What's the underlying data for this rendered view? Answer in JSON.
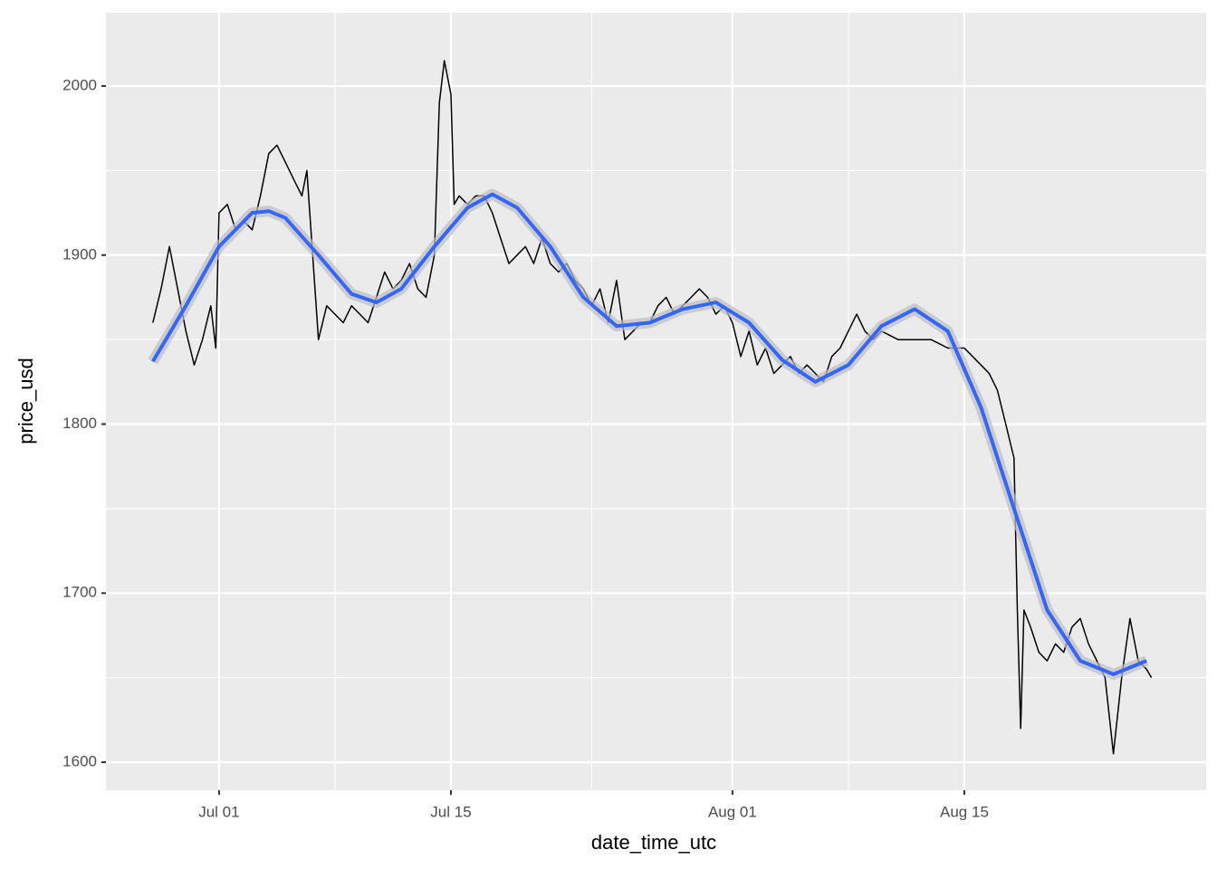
{
  "chart_data": {
    "type": "line",
    "x_label": "date_time_utc",
    "y_label": "price_usd",
    "xlim": [
      -6.83,
      59.6
    ],
    "ylim": [
      1583.4,
      2043.4
    ],
    "xticks": [
      {
        "value": 0,
        "label": "Jul 01"
      },
      {
        "value": 14,
        "label": "Jul 15"
      },
      {
        "value": 31,
        "label": "Aug 01"
      },
      {
        "value": 45,
        "label": "Aug 15"
      }
    ],
    "xminor": [
      7,
      22.5,
      38
    ],
    "yticks": [
      1600,
      1700,
      1800,
      1900,
      2000
    ],
    "yminor": [
      1650,
      1750,
      1850,
      1950
    ],
    "grid": true,
    "series": [
      {
        "color": "#000000",
        "x": [
          -4,
          -3.5,
          -3,
          -2.5,
          -2,
          -1.5,
          -1,
          -0.5,
          -0.2,
          0,
          0.5,
          1,
          1.5,
          2,
          2.5,
          3,
          3.5,
          4,
          4.5,
          5,
          5.3,
          6,
          6.5,
          7,
          7.5,
          8,
          8.5,
          9,
          9.5,
          10,
          10.5,
          11,
          11.5,
          12,
          12.5,
          13,
          13.3,
          13.6,
          14,
          14.2,
          14.5,
          15,
          15.5,
          16,
          16.5,
          17,
          17.5,
          18,
          18.5,
          19,
          19.5,
          20,
          20.5,
          21,
          21.5,
          22,
          22.5,
          23,
          23.5,
          24,
          24.5,
          25,
          25.5,
          26,
          26.5,
          27,
          27.5,
          28,
          28.5,
          29,
          29.5,
          30,
          30.5,
          31,
          31.5,
          32,
          32.5,
          33,
          33.5,
          34,
          34.5,
          35,
          35.5,
          36,
          36.5,
          37,
          37.5,
          38,
          38.5,
          39,
          39.5,
          40,
          41,
          42,
          43,
          44,
          45,
          45.5,
          46,
          46.5,
          47,
          47.5,
          48,
          48.2,
          48.4,
          48.6,
          49,
          49.5,
          50,
          50.5,
          51,
          51.5,
          52,
          52.5,
          53,
          53.5,
          54,
          54.5,
          55,
          55.5,
          56,
          56.3
        ],
        "values": [
          1860,
          1880,
          1905,
          1880,
          1855,
          1835,
          1850,
          1870,
          1845,
          1925,
          1930,
          1915,
          1920,
          1915,
          1935,
          1960,
          1965,
          1955,
          1945,
          1935,
          1950,
          1850,
          1870,
          1865,
          1860,
          1870,
          1865,
          1860,
          1875,
          1890,
          1880,
          1885,
          1895,
          1880,
          1875,
          1900,
          1990,
          2015,
          1995,
          1930,
          1935,
          1930,
          1935,
          1935,
          1925,
          1910,
          1895,
          1900,
          1905,
          1895,
          1910,
          1895,
          1890,
          1895,
          1885,
          1880,
          1870,
          1880,
          1860,
          1885,
          1850,
          1855,
          1860,
          1860,
          1870,
          1875,
          1865,
          1870,
          1875,
          1880,
          1875,
          1865,
          1870,
          1860,
          1840,
          1855,
          1835,
          1845,
          1830,
          1835,
          1840,
          1830,
          1835,
          1830,
          1825,
          1840,
          1845,
          1855,
          1865,
          1855,
          1850,
          1855,
          1850,
          1850,
          1850,
          1845,
          1845,
          1840,
          1835,
          1830,
          1820,
          1800,
          1780,
          1690,
          1620,
          1690,
          1680,
          1665,
          1660,
          1670,
          1665,
          1680,
          1685,
          1670,
          1660,
          1650,
          1605,
          1650,
          1685,
          1660,
          1655,
          1650
        ]
      },
      {
        "color": "#3366ff",
        "x": [
          -4,
          -2,
          0,
          2,
          3,
          4,
          6,
          8,
          9.5,
          11,
          13,
          15,
          16.5,
          18,
          20,
          22,
          24,
          26,
          28,
          30,
          32,
          34,
          36,
          38,
          40,
          42,
          44,
          46,
          48,
          50,
          52,
          54,
          56
        ],
        "values": [
          1837,
          1870,
          1905,
          1925,
          1926,
          1922,
          1900,
          1877,
          1872,
          1880,
          1905,
          1928,
          1936,
          1928,
          1905,
          1875,
          1858,
          1860,
          1868,
          1872,
          1860,
          1838,
          1825,
          1835,
          1858,
          1868,
          1855,
          1810,
          1750,
          1690,
          1660,
          1652,
          1660
        ]
      }
    ]
  }
}
